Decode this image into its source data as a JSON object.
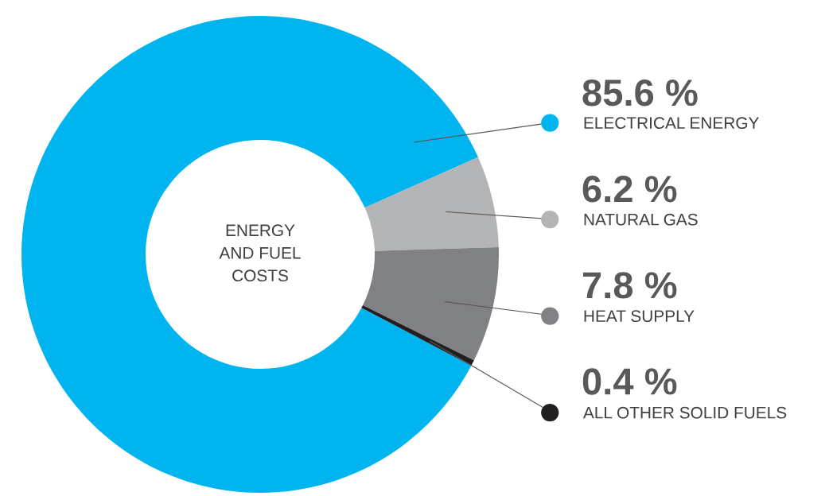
{
  "chart_data": {
    "type": "donut",
    "title": "ENERGY\nAND FUEL\nCOSTS",
    "categories": [
      "ELECTRICAL ENERGY",
      "NATURAL GAS",
      "HEAT SUPPLY",
      "ALL OTHER SOLID FUELS"
    ],
    "values": [
      85.6,
      6.2,
      7.8,
      0.4
    ],
    "colors": [
      "#00b5ef",
      "#b3b4b6",
      "#808184",
      "#231f20"
    ],
    "value_labels": [
      "85.6 %",
      "6.2 %",
      "7.8 %",
      "0.4 %"
    ],
    "legend": "right"
  }
}
